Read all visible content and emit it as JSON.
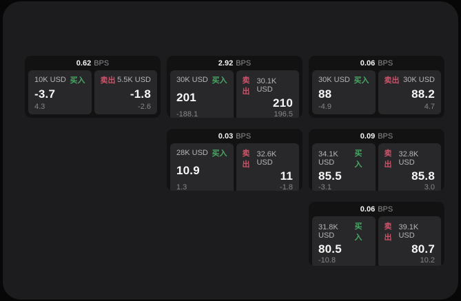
{
  "labels": {
    "bps_unit": "BPS",
    "buy": "买入",
    "sell": "卖出"
  },
  "colors": {
    "buy_green": "#46a963",
    "sell_red": "#ce5268",
    "panel_bg": "#1c1c1e",
    "card_bg": "#121212",
    "tile_bg": "#28282b"
  },
  "cards": [
    {
      "bps": "0.62",
      "buy": {
        "amount": "10K USD",
        "value": "-3.7",
        "change": "4.3"
      },
      "sell": {
        "amount": "5.5K USD",
        "value": "-1.8",
        "change": "-2.6"
      }
    },
    {
      "bps": "2.92",
      "buy": {
        "amount": "30K USD",
        "value": "201",
        "change": "-188.1"
      },
      "sell": {
        "amount": "30.1K USD",
        "value": "210",
        "change": "196.5"
      }
    },
    {
      "bps": "0.06",
      "buy": {
        "amount": "30K USD",
        "value": "88",
        "change": "-4.9"
      },
      "sell": {
        "amount": "30K USD",
        "value": "88.2",
        "change": "4.7"
      }
    },
    {
      "bps": "0.03",
      "buy": {
        "amount": "28K USD",
        "value": "10.9",
        "change": "1.3"
      },
      "sell": {
        "amount": "32.6K USD",
        "value": "11",
        "change": "-1.8"
      }
    },
    {
      "bps": "0.09",
      "buy": {
        "amount": "34.1K USD",
        "value": "85.5",
        "change": "-3.1"
      },
      "sell": {
        "amount": "32.8K USD",
        "value": "85.8",
        "change": "3.0"
      }
    },
    {
      "bps": "0.06",
      "buy": {
        "amount": "31.8K USD",
        "value": "80.5",
        "change": "-10.8"
      },
      "sell": {
        "amount": "39.1K USD",
        "value": "80.7",
        "change": "10.2"
      }
    }
  ]
}
